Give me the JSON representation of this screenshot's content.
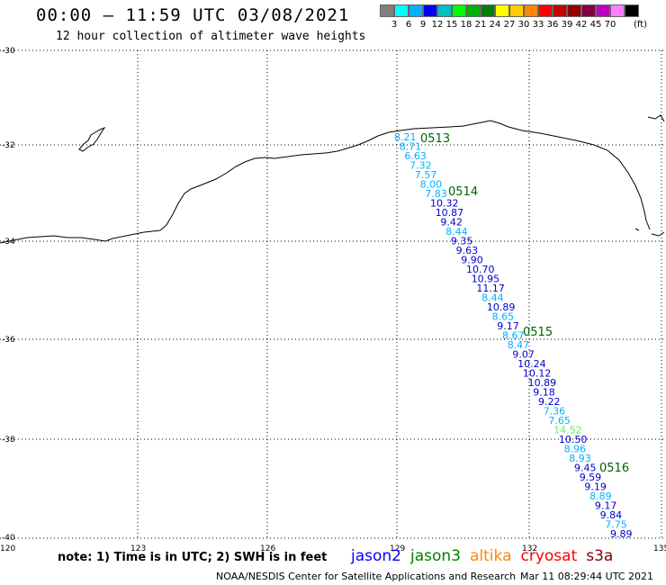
{
  "header": {
    "title": "00:00 – 11:59 UTC 03/08/2021",
    "subtitle": "12 hour collection of altimeter wave heights"
  },
  "scale": {
    "colors": [
      "#808080",
      "#00ffff",
      "#00b0ff",
      "#0000ff",
      "#00c0c0",
      "#00ff00",
      "#00b000",
      "#008000",
      "#ffff00",
      "#ffcc00",
      "#ff8800",
      "#ff0000",
      "#c80000",
      "#900000",
      "#800040",
      "#c000c0",
      "#ff80ff",
      "#000000"
    ],
    "labels": [
      "3",
      "6",
      "9",
      "12",
      "15",
      "18",
      "21",
      "24",
      "27",
      "30",
      "33",
      "36",
      "39",
      "42",
      "45",
      "70"
    ],
    "unit": "(ft)"
  },
  "axes": {
    "lat_labels": [
      "-30",
      "-32",
      "-34",
      "-36",
      "-38",
      "-40"
    ],
    "lon_labels": [
      "120",
      "123",
      "126",
      "129",
      "132",
      "135"
    ]
  },
  "passes": [
    {
      "label": "0513"
    },
    {
      "label": "0514"
    },
    {
      "label": "0515"
    },
    {
      "label": "0516"
    }
  ],
  "points": [
    {
      "v": "8.21",
      "c": "#00b0ff"
    },
    {
      "v": "8.71",
      "c": "#00b0ff"
    },
    {
      "v": "6.63",
      "c": "#00b0ff"
    },
    {
      "v": "7.32",
      "c": "#00b0ff"
    },
    {
      "v": "7.57",
      "c": "#00b0ff"
    },
    {
      "v": "8.00",
      "c": "#00b0ff"
    },
    {
      "v": "7.83",
      "c": "#00b0ff"
    },
    {
      "v": "10.32",
      "c": "#0000cc"
    },
    {
      "v": "10.87",
      "c": "#0000cc"
    },
    {
      "v": "9.42",
      "c": "#0000cc"
    },
    {
      "v": "8.44",
      "c": "#00b0ff"
    },
    {
      "v": "9.35",
      "c": "#0000cc"
    },
    {
      "v": "9.63",
      "c": "#0000cc"
    },
    {
      "v": "9.90",
      "c": "#0000cc"
    },
    {
      "v": "10.70",
      "c": "#0000cc"
    },
    {
      "v": "10.95",
      "c": "#0000cc"
    },
    {
      "v": "11.17",
      "c": "#0000cc"
    },
    {
      "v": "8.44",
      "c": "#00b0ff"
    },
    {
      "v": "10.89",
      "c": "#0000cc"
    },
    {
      "v": "8.65",
      "c": "#00b0ff"
    },
    {
      "v": "9.17",
      "c": "#0000cc"
    },
    {
      "v": "8.67",
      "c": "#00b0ff"
    },
    {
      "v": "8.47",
      "c": "#00b0ff"
    },
    {
      "v": "9.07",
      "c": "#0000cc"
    },
    {
      "v": "10.24",
      "c": "#0000cc"
    },
    {
      "v": "10.12",
      "c": "#0000cc"
    },
    {
      "v": "10.89",
      "c": "#0000cc"
    },
    {
      "v": "9.18",
      "c": "#0000cc"
    },
    {
      "v": "9.22",
      "c": "#0000cc"
    },
    {
      "v": "7.36",
      "c": "#00b0ff"
    },
    {
      "v": "7.65",
      "c": "#00b0ff"
    },
    {
      "v": "14.52",
      "c": "#66ee66"
    },
    {
      "v": "10.50",
      "c": "#0000cc"
    },
    {
      "v": "8.96",
      "c": "#00b0ff"
    },
    {
      "v": "8.93",
      "c": "#00b0ff"
    },
    {
      "v": "9.45",
      "c": "#0000cc"
    },
    {
      "v": "9.59",
      "c": "#0000cc"
    },
    {
      "v": "9.19",
      "c": "#0000cc"
    },
    {
      "v": "8.89",
      "c": "#00b0ff"
    },
    {
      "v": "9.17",
      "c": "#0000cc"
    },
    {
      "v": "9.84",
      "c": "#0000cc"
    },
    {
      "v": "7.75",
      "c": "#00b0ff"
    },
    {
      "v": "9.89",
      "c": "#0000cc"
    }
  ],
  "footer": {
    "note": "note: 1) Time is in UTC; 2) SWH is in feet",
    "satellites": [
      {
        "name": "jason2",
        "color": "#0000ff"
      },
      {
        "name": "jason3",
        "color": "#008000"
      },
      {
        "name": "altika",
        "color": "#ff8800"
      },
      {
        "name": "cryosat",
        "color": "#ff0000"
      },
      {
        "name": "s3a",
        "color": "#800000"
      }
    ],
    "credit": "NOAA/NESDIS Center for Satellite Applications and Research",
    "timestamp": "Mar 11 08:29:44 UTC 2021"
  }
}
